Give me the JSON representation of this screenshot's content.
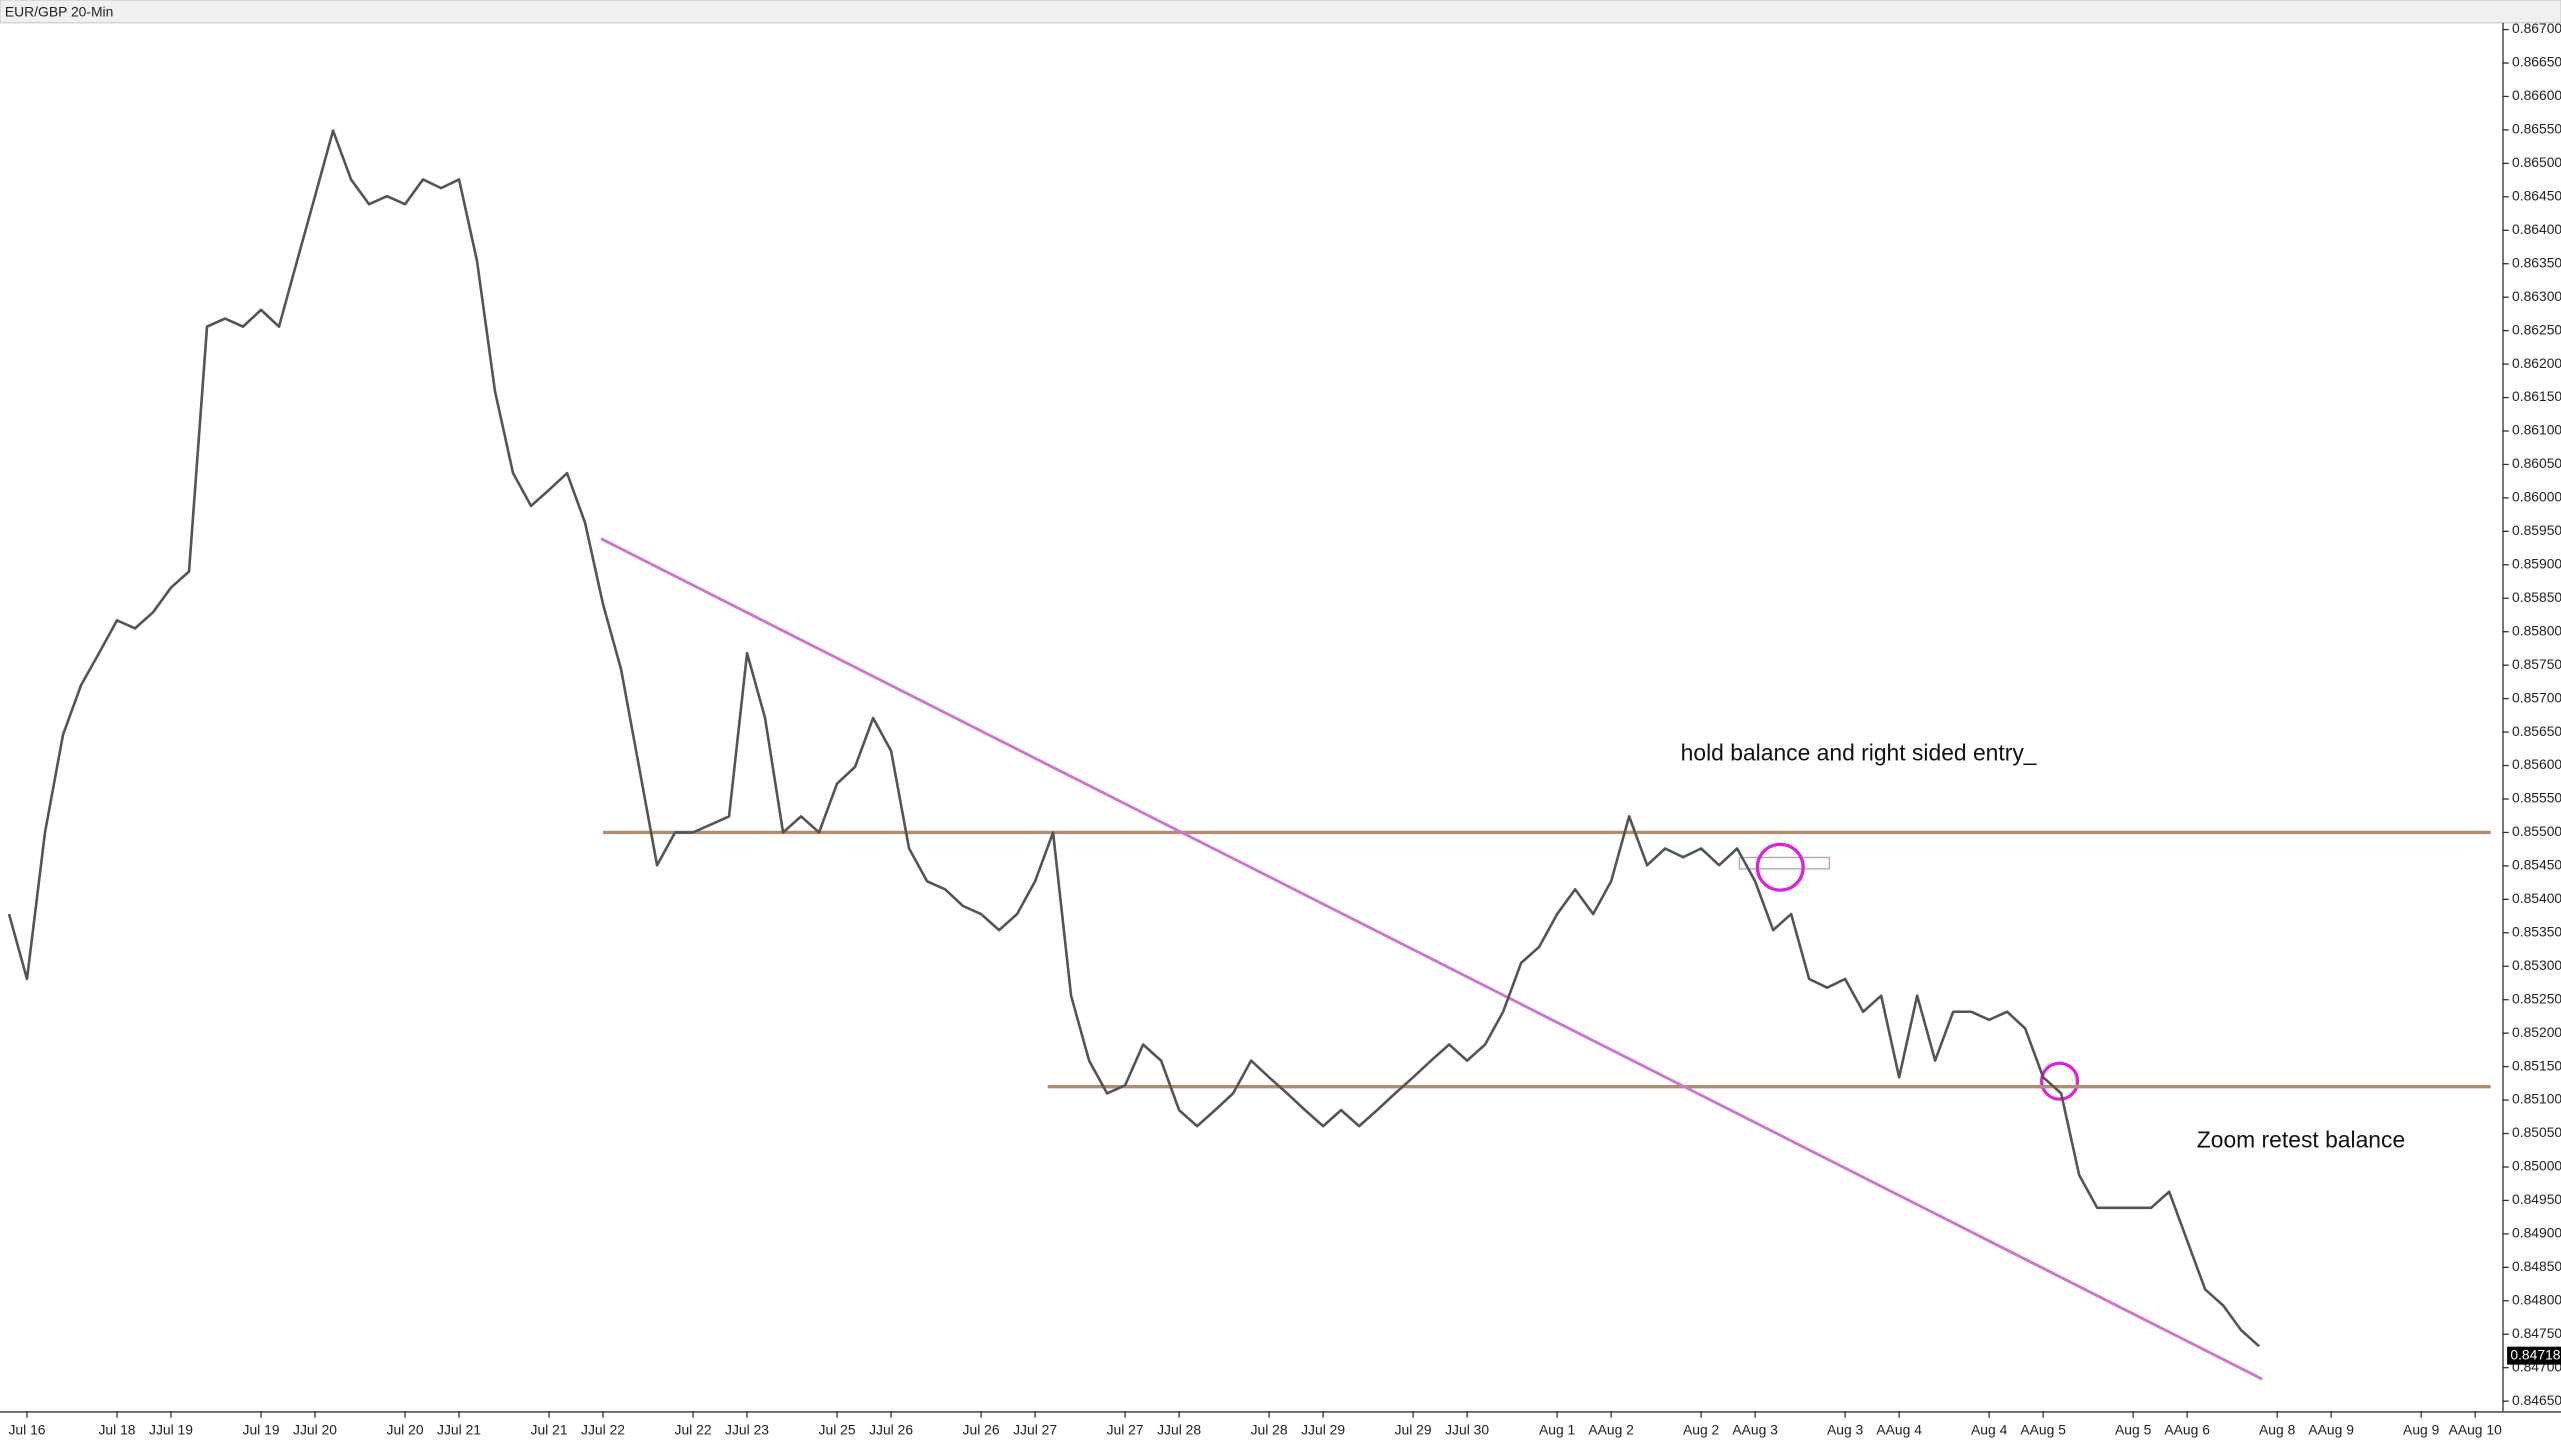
{
  "chart_data": {
    "type": "line",
    "title": "EUR/GBP 20-Min",
    "color": "#555555",
    "categories": [
      null,
      "Jul 16",
      null,
      null,
      null,
      null,
      "Jul 18",
      null,
      null,
      "JJul 19",
      null,
      null,
      null,
      null,
      "Jul 19",
      null,
      null,
      "JJul 20",
      null,
      null,
      null,
      null,
      "Jul 20",
      null,
      null,
      "JJul 21",
      null,
      null,
      null,
      null,
      "Jul 21",
      null,
      null,
      "JJul 22",
      null,
      null,
      null,
      null,
      "Jul 22",
      null,
      null,
      "JJul 23",
      null,
      null,
      null,
      null,
      "Jul 25",
      null,
      null,
      "JJul 26",
      null,
      null,
      null,
      null,
      "Jul 26",
      null,
      null,
      "JJul 27",
      null,
      null,
      null,
      null,
      "Jul 27",
      null,
      null,
      "JJul 28",
      null,
      null,
      null,
      null,
      "Jul 28",
      null,
      null,
      "JJul 29",
      null,
      null,
      null,
      null,
      "Jul 29",
      null,
      null,
      "JJul 30",
      null,
      null,
      null,
      null,
      "Aug 1",
      null,
      null,
      "AAug 2",
      null,
      null,
      null,
      null,
      "Aug 2",
      null,
      null,
      "AAug 3",
      null,
      null,
      null,
      null,
      "Aug 3",
      null,
      null,
      "AAug 4",
      null,
      null,
      null,
      null,
      "Aug 4",
      null,
      null,
      "AAug 5",
      null,
      null,
      null,
      null,
      "Aug 5",
      null,
      null,
      "AAug 6",
      null,
      null,
      null,
      null,
      "Aug 8",
      null,
      null,
      "AAug 9",
      null,
      null,
      null,
      null,
      "Aug 9",
      null,
      null,
      "AAug 10",
      null
    ],
    "values": [
      0.85378,
      0.85281,
      0.855,
      0.85646,
      0.8572,
      0.85768,
      0.85817,
      0.85805,
      0.85829,
      0.85866,
      0.8589,
      0.86256,
      0.86268,
      0.86256,
      0.86281,
      0.86256,
      0.86354,
      0.86451,
      0.86549,
      0.86476,
      0.86439,
      0.86451,
      0.86439,
      0.86476,
      0.86463,
      0.86476,
      0.86354,
      0.86159,
      0.86037,
      0.85988,
      0.86012,
      0.86037,
      0.85963,
      0.85841,
      0.85744,
      0.85598,
      0.85451,
      0.855,
      0.855,
      0.85512,
      0.85524,
      0.85768,
      0.85671,
      0.855,
      0.85524,
      0.855,
      0.85573,
      0.85598,
      0.85671,
      0.85622,
      0.85476,
      0.85427,
      0.85415,
      0.8539,
      0.85378,
      0.85354,
      0.85378,
      0.85427,
      0.855,
      0.85256,
      0.85159,
      0.8511,
      0.85122,
      0.85183,
      0.85159,
      0.85085,
      0.85061,
      0.85085,
      0.8511,
      0.85159,
      0.85134,
      0.8511,
      0.85085,
      0.85061,
      0.85085,
      0.85061,
      0.85085,
      0.8511,
      0.85134,
      0.85159,
      0.85183,
      0.85159,
      0.85183,
      0.85232,
      0.85305,
      0.85329,
      0.85378,
      0.85415,
      0.85378,
      0.85427,
      0.85524,
      0.85451,
      0.85476,
      0.85463,
      0.85476,
      0.85451,
      0.85476,
      0.85427,
      0.85354,
      0.85378,
      0.85281,
      0.85268,
      0.85281,
      0.85232,
      0.85256,
      0.85134,
      0.85256,
      0.85159,
      0.85232,
      0.85232,
      0.8522,
      0.85232,
      0.85207,
      0.85134,
      0.8511,
      0.84988,
      0.84939,
      0.84939,
      0.84939,
      0.84939,
      0.84963,
      0.8489,
      0.84817,
      0.84793,
      0.84756,
      0.84732,
      null,
      null,
      null,
      null,
      null,
      null,
      null,
      null,
      null,
      null,
      null,
      null,
      null
    ],
    "ylim": [
      0.8464,
      0.8671
    ],
    "yticks": [
      {
        "value": 0.867,
        "label": "0.86700"
      },
      {
        "value": 0.8665,
        "label": "0.86650"
      },
      {
        "value": 0.866,
        "label": "0.86600"
      },
      {
        "value": 0.8655,
        "label": "0.86550"
      },
      {
        "value": 0.865,
        "label": "0.86500"
      },
      {
        "value": 0.8645,
        "label": "0.86450"
      },
      {
        "value": 0.864,
        "label": "0.86400"
      },
      {
        "value": 0.8635,
        "label": "0.86350"
      },
      {
        "value": 0.863,
        "label": "0.86300"
      },
      {
        "value": 0.8625,
        "label": "0.86250"
      },
      {
        "value": 0.862,
        "label": "0.86200"
      },
      {
        "value": 0.8615,
        "label": "0.86150"
      },
      {
        "value": 0.861,
        "label": "0.86100"
      },
      {
        "value": 0.8605,
        "label": "0.86050"
      },
      {
        "value": 0.86,
        "label": "0.86000"
      },
      {
        "value": 0.8595,
        "label": "0.85950"
      },
      {
        "value": 0.859,
        "label": "0.85900"
      },
      {
        "value": 0.8585,
        "label": "0.85850"
      },
      {
        "value": 0.858,
        "label": "0.85800"
      },
      {
        "value": 0.8575,
        "label": "0.85750"
      },
      {
        "value": 0.857,
        "label": "0.85700"
      },
      {
        "value": 0.8565,
        "label": "0.85650"
      },
      {
        "value": 0.856,
        "label": "0.85600"
      },
      {
        "value": 0.8555,
        "label": "0.85550"
      },
      {
        "value": 0.855,
        "label": "0.85500"
      },
      {
        "value": 0.8545,
        "label": "0.85450"
      },
      {
        "value": 0.854,
        "label": "0.85400"
      },
      {
        "value": 0.8535,
        "label": "0.85350"
      },
      {
        "value": 0.853,
        "label": "0.85300"
      },
      {
        "value": 0.8525,
        "label": "0.85250"
      },
      {
        "value": 0.852,
        "label": "0.85200"
      },
      {
        "value": 0.8515,
        "label": "0.85150"
      },
      {
        "value": 0.851,
        "label": "0.85100"
      },
      {
        "value": 0.8505,
        "label": "0.85050"
      },
      {
        "value": 0.85,
        "label": "0.85000"
      },
      {
        "value": 0.8495,
        "label": "0.84950"
      },
      {
        "value": 0.849,
        "label": "0.84900"
      },
      {
        "value": 0.8485,
        "label": "0.84850"
      },
      {
        "value": 0.848,
        "label": "0.84800"
      },
      {
        "value": 0.8475,
        "label": "0.84750"
      },
      {
        "value": 0.847,
        "label": "0.84700"
      },
      {
        "value": 0.8465,
        "label": "0.84650"
      }
    ],
    "last_price": 0.84718,
    "levels": [
      {
        "value": 0.855,
        "color": "#b08d6e"
      },
      {
        "value": 0.8512,
        "color": "#b08d6e"
      }
    ],
    "trendline": {
      "start": 0.85939,
      "end": 0.84683,
      "color": "#cc77cc"
    },
    "annotations": [
      "hold balance and right sided entry_",
      "Zoom retest balance"
    ]
  }
}
